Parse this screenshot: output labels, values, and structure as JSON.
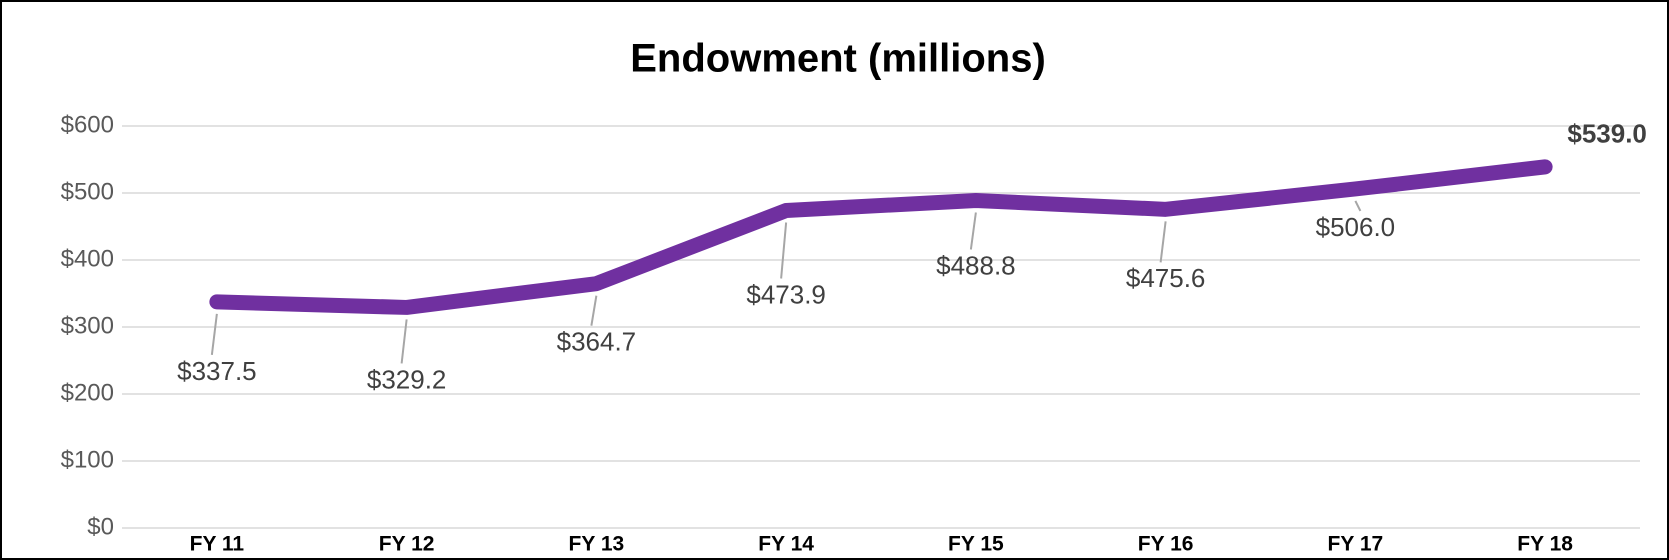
{
  "chart_data": {
    "type": "line",
    "title": "Endowment (millions)",
    "categories": [
      "FY 11",
      "FY 12",
      "FY 13",
      "FY 14",
      "FY 15",
      "FY 16",
      "FY 17",
      "FY 18"
    ],
    "series": [
      {
        "name": "Endowment",
        "color": "#7030a0",
        "values": [
          337.5,
          329.2,
          364.7,
          473.9,
          488.8,
          475.6,
          506.0,
          539.0
        ],
        "value_labels": [
          "$337.5",
          "$329.2",
          "$364.7",
          "$473.9",
          "$488.8",
          "$475.6",
          "$506.0",
          "$539.0"
        ]
      }
    ],
    "ylim": [
      0,
      600
    ],
    "yticks": [
      {
        "value": 0,
        "label": "$0"
      },
      {
        "value": 100,
        "label": "$100"
      },
      {
        "value": 200,
        "label": "$200"
      },
      {
        "value": 300,
        "label": "$300"
      },
      {
        "value": 400,
        "label": "$400"
      },
      {
        "value": 500,
        "label": "$500"
      },
      {
        "value": 600,
        "label": "$600"
      }
    ],
    "grid": true
  }
}
